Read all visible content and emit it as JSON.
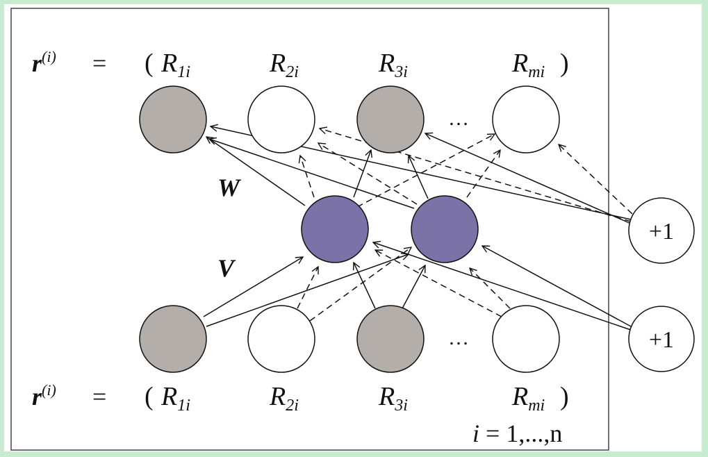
{
  "diagram": {
    "top_row": {
      "vector_symbol": "r",
      "vector_superscript": "(i)",
      "equals": "=",
      "open_paren": "(",
      "close_paren": ")",
      "labels": [
        {
          "main": "R",
          "sub": "1i"
        },
        {
          "main": "R",
          "sub": "2i"
        },
        {
          "main": "R",
          "sub": "3i"
        },
        {
          "main": "R",
          "sub": "mi"
        }
      ]
    },
    "bottom_row": {
      "vector_symbol": "r",
      "vector_superscript": "(i)",
      "equals": "=",
      "open_paren": "(",
      "close_paren": ")",
      "labels": [
        {
          "main": "R",
          "sub": "1i"
        },
        {
          "main": "R",
          "sub": "2i"
        },
        {
          "main": "R",
          "sub": "3i"
        },
        {
          "main": "R",
          "sub": "mi"
        }
      ]
    },
    "ellipsis": "…",
    "weight_labels": {
      "upper": "W",
      "lower": "V"
    },
    "bias_label": "+1",
    "index_range": {
      "var": "i",
      "text": " = 1,...,n"
    },
    "colors": {
      "observed_node": "#b3aeaa",
      "unobserved_node": "#ffffff",
      "hidden_node": "#7b73a8",
      "stroke": "#111111",
      "background": "#c9ebd0"
    }
  }
}
